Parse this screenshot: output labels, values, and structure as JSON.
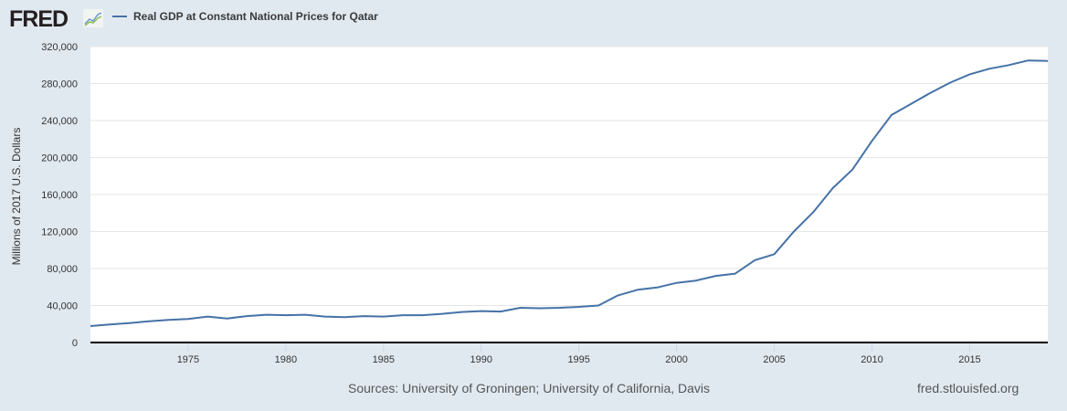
{
  "header": {
    "logo": "FRED",
    "legend_label": "Real GDP at Constant National Prices for Qatar"
  },
  "footer": {
    "source": "Sources: University of Groningen; University of California, Davis",
    "site": "fred.stlouisfed.org"
  },
  "chart_data": {
    "type": "line",
    "title": "",
    "xlabel": "",
    "ylabel": "Millions of 2017 U.S. Dollars",
    "xlim": [
      1970,
      2019
    ],
    "ylim": [
      0,
      320000
    ],
    "grid": true,
    "legend_placement": "top-left",
    "xticks": [
      1975,
      1980,
      1985,
      1990,
      1995,
      2000,
      2005,
      2010,
      2015
    ],
    "yticks": [
      0,
      40000,
      80000,
      120000,
      160000,
      200000,
      240000,
      280000,
      320000
    ],
    "ytick_labels": [
      "0",
      "40,000",
      "80,000",
      "120,000",
      "160,000",
      "200,000",
      "240,000",
      "280,000",
      "320,000"
    ],
    "series": [
      {
        "name": "Real GDP at Constant National Prices for Qatar",
        "color": "#4572a7",
        "x": [
          1970,
          1971,
          1972,
          1973,
          1974,
          1975,
          1976,
          1977,
          1978,
          1979,
          1980,
          1981,
          1982,
          1983,
          1984,
          1985,
          1986,
          1987,
          1988,
          1989,
          1990,
          1991,
          1992,
          1993,
          1994,
          1995,
          1996,
          1997,
          1998,
          1999,
          2000,
          2001,
          2002,
          2003,
          2004,
          2005,
          2006,
          2007,
          2008,
          2009,
          2010,
          2011,
          2012,
          2013,
          2014,
          2015,
          2016,
          2017,
          2018,
          2019
        ],
        "y": [
          17800,
          19500,
          21000,
          23000,
          24500,
          25500,
          28000,
          26000,
          28500,
          30000,
          29500,
          30000,
          28000,
          27500,
          28500,
          28000,
          29500,
          29500,
          31000,
          33000,
          34000,
          33500,
          37500,
          37000,
          37500,
          38500,
          40000,
          51000,
          57000,
          59500,
          64500,
          67000,
          72000,
          74500,
          89000,
          95500,
          120000,
          141000,
          167000,
          187000,
          218000,
          246000,
          258000,
          270000,
          281000,
          290000,
          296000,
          300000,
          305000,
          304500
        ]
      }
    ]
  }
}
